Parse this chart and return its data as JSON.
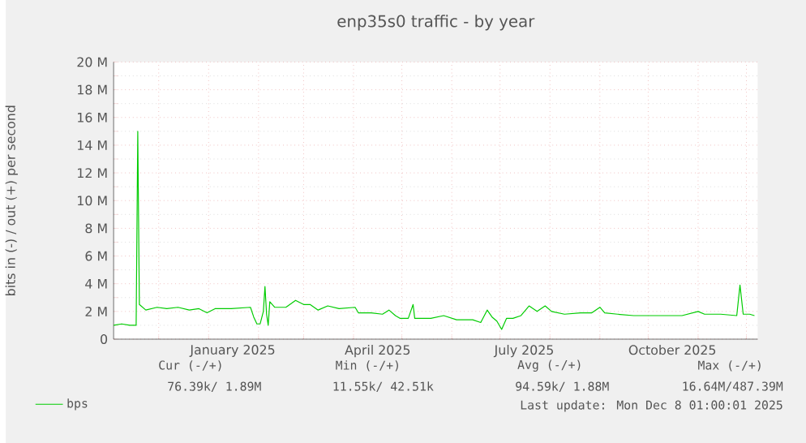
{
  "chart_data": {
    "type": "line",
    "title": "enp35s0 traffic - by year",
    "ylabel": "bits in (-) / out (+) per second",
    "xlim": [
      "2024-11-03",
      "2025-12-08"
    ],
    "xticks": [
      {
        "value": "2024-12-01",
        "label": null
      },
      {
        "value": "2025-01-01",
        "label": null
      },
      {
        "value": "2025-01-16",
        "label": "January 2025"
      },
      {
        "value": "2025-02-01",
        "label": null
      },
      {
        "value": "2025-03-01",
        "label": null
      },
      {
        "value": "2025-04-01",
        "label": null
      },
      {
        "value": "2025-04-16",
        "label": "April 2025"
      },
      {
        "value": "2025-05-01",
        "label": null
      },
      {
        "value": "2025-06-01",
        "label": null
      },
      {
        "value": "2025-07-01",
        "label": null
      },
      {
        "value": "2025-07-16",
        "label": "July 2025"
      },
      {
        "value": "2025-08-01",
        "label": null
      },
      {
        "value": "2025-09-01",
        "label": null
      },
      {
        "value": "2025-10-01",
        "label": null
      },
      {
        "value": "2025-10-16",
        "label": "October 2025"
      },
      {
        "value": "2025-11-01",
        "label": null
      },
      {
        "value": "2025-12-01",
        "label": null
      }
    ],
    "ylim": [
      0,
      20
    ],
    "yticks": [
      0,
      {
        "value": 2,
        "label": "2 M"
      },
      {
        "value": 4,
        "label": "4 M"
      },
      {
        "value": 6,
        "label": "6 M"
      },
      {
        "value": 8,
        "label": "8 M"
      },
      {
        "value": 10,
        "label": "10 M"
      },
      {
        "value": 12,
        "label": "12 M"
      },
      {
        "value": 14,
        "label": "14 M"
      },
      {
        "value": 16,
        "label": "16 M"
      },
      {
        "value": 18,
        "label": "18 M"
      },
      {
        "value": 20,
        "label": "20 M"
      }
    ],
    "grid": true,
    "legend": "bottom",
    "marker": "none",
    "line_style": "solid",
    "x": [
      "2024-11-03",
      "2024-11-08",
      "2024-11-13",
      "2024-11-17",
      "2024-11-18",
      "2024-11-19",
      "2024-11-23",
      "2024-11-30",
      "2024-12-06",
      "2024-12-13",
      "2024-12-20",
      "2024-12-26",
      "2024-12-31",
      "2025-01-05",
      "2025-01-15",
      "2025-01-27",
      "2025-01-29",
      "2025-01-31",
      "2025-02-02",
      "2025-02-04",
      "2025-02-05",
      "2025-02-06",
      "2025-02-07",
      "2025-02-08",
      "2025-02-11",
      "2025-02-18",
      "2025-02-24",
      "2025-03-01",
      "2025-03-05",
      "2025-03-10",
      "2025-03-16",
      "2025-03-23",
      "2025-04-02",
      "2025-04-04",
      "2025-04-12",
      "2025-04-19",
      "2025-04-23",
      "2025-04-27",
      "2025-04-30",
      "2025-05-05",
      "2025-05-08",
      "2025-05-09",
      "2025-05-19",
      "2025-05-27",
      "2025-06-04",
      "2025-06-14",
      "2025-06-19",
      "2025-06-23",
      "2025-06-26",
      "2025-06-29",
      "2025-07-02",
      "2025-07-05",
      "2025-07-09",
      "2025-07-14",
      "2025-07-19",
      "2025-07-24",
      "2025-07-29",
      "2025-08-02",
      "2025-08-10",
      "2025-08-20",
      "2025-08-27",
      "2025-09-01",
      "2025-09-04",
      "2025-09-12",
      "2025-09-22",
      "2025-10-02",
      "2025-10-12",
      "2025-10-22",
      "2025-11-01",
      "2025-11-05",
      "2025-11-15",
      "2025-11-25",
      "2025-11-27",
      "2025-11-29",
      "2025-12-03",
      "2025-12-06"
    ],
    "series": [
      {
        "name": "bps",
        "color": "#00cc00",
        "values": [
          1.0,
          1.1,
          1.0,
          1.0,
          15.0,
          2.5,
          2.1,
          2.3,
          2.2,
          2.3,
          2.1,
          2.2,
          1.9,
          2.2,
          2.2,
          2.3,
          1.6,
          1.1,
          1.1,
          2.0,
          3.8,
          1.8,
          1.0,
          2.7,
          2.3,
          2.3,
          2.8,
          2.5,
          2.5,
          2.1,
          2.4,
          2.2,
          2.3,
          1.9,
          1.9,
          1.8,
          2.1,
          1.7,
          1.5,
          1.5,
          2.5,
          1.5,
          1.5,
          1.7,
          1.4,
          1.4,
          1.2,
          2.1,
          1.6,
          1.3,
          0.7,
          1.5,
          1.5,
          1.7,
          2.4,
          2.0,
          2.4,
          2.0,
          1.8,
          1.9,
          1.9,
          2.3,
          1.9,
          1.8,
          1.7,
          1.7,
          1.7,
          1.7,
          2.0,
          1.8,
          1.8,
          1.7,
          3.9,
          1.8,
          1.8,
          1.7
        ]
      }
    ],
    "annotations": [
      "Cur (-/+)",
      "Min (-/+)",
      "Avg (-/+)",
      "Max (-/+)",
      "76.39k/ 1.89M",
      "11.55k/ 42.51k",
      "94.59k/ 1.88M",
      "16.64M/487.39M",
      "Last update: Mon Dec 8 01:00:01 2025"
    ]
  }
}
